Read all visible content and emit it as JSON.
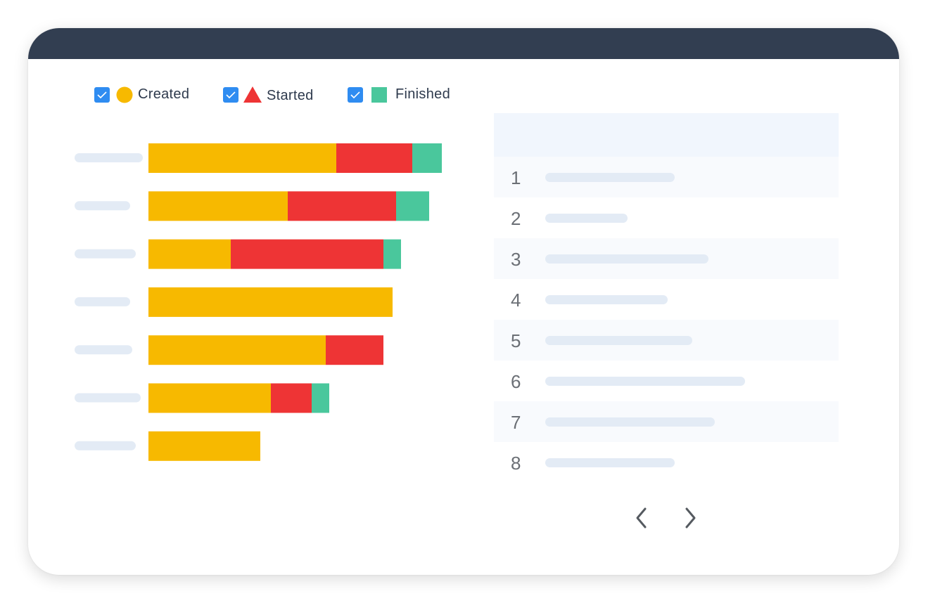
{
  "legend": [
    {
      "label": "Created",
      "shape": "circle",
      "color": "#f7b900",
      "checked": true
    },
    {
      "label": "Started",
      "shape": "triangle",
      "color": "#ee3435",
      "checked": true
    },
    {
      "label": "Finished",
      "shape": "square",
      "color": "#4ac79c",
      "checked": true
    }
  ],
  "colors": {
    "created": "#f7b900",
    "started": "#ee3435",
    "finished": "#4ac79c",
    "checkbox": "#2f8cf1",
    "placeholder": "#e3ebf5",
    "titlebar": "#323e51"
  },
  "chart_data": {
    "type": "bar",
    "orientation": "horizontal",
    "stacked": true,
    "categories": [
      "",
      "",
      "",
      "",
      "",
      "",
      ""
    ],
    "series": [
      {
        "name": "Created",
        "values": [
          267,
          198,
          117,
          347,
          252,
          174,
          159
        ]
      },
      {
        "name": "Started",
        "values": [
          108,
          154,
          217,
          0,
          82,
          58,
          0
        ]
      },
      {
        "name": "Finished",
        "values": [
          42,
          47,
          25,
          0,
          0,
          25,
          0
        ]
      }
    ],
    "xlim": [
      0,
      417
    ]
  },
  "table": {
    "rows": [
      {
        "num": "1"
      },
      {
        "num": "2"
      },
      {
        "num": "3"
      },
      {
        "num": "4"
      },
      {
        "num": "5"
      },
      {
        "num": "6"
      },
      {
        "num": "7"
      },
      {
        "num": "8"
      }
    ]
  },
  "pager": {
    "prev_icon": "chevron-left-icon",
    "next_icon": "chevron-right-icon"
  }
}
